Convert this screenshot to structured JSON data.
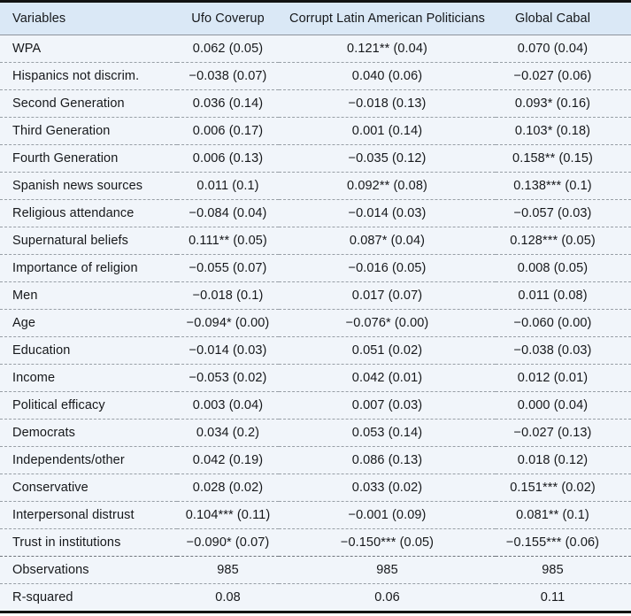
{
  "table": {
    "columns": [
      "Variables",
      "Ufo Coverup",
      "Corrupt Latin American Politicians",
      "Global Cabal"
    ],
    "rows": [
      {
        "label": "WPA",
        "values": [
          "0.062 (0.05)",
          "0.121** (0.04)",
          "0.070 (0.04)"
        ]
      },
      {
        "label": "Hispanics not discrim.",
        "values": [
          "−0.038 (0.07)",
          "0.040 (0.06)",
          "−0.027 (0.06)"
        ]
      },
      {
        "label": "Second Generation",
        "values": [
          "0.036 (0.14)",
          "−0.018 (0.13)",
          "0.093* (0.16)"
        ]
      },
      {
        "label": "Third Generation",
        "values": [
          "0.006 (0.17)",
          "0.001 (0.14)",
          "0.103* (0.18)"
        ]
      },
      {
        "label": "Fourth Generation",
        "values": [
          "0.006 (0.13)",
          "−0.035 (0.12)",
          "0.158** (0.15)"
        ]
      },
      {
        "label": "Spanish news sources",
        "values": [
          "0.011 (0.1)",
          "0.092** (0.08)",
          "0.138*** (0.1)"
        ]
      },
      {
        "label": "Religious attendance",
        "values": [
          "−0.084 (0.04)",
          "−0.014 (0.03)",
          "−0.057 (0.03)"
        ]
      },
      {
        "label": "Supernatural beliefs",
        "values": [
          "0.111** (0.05)",
          "0.087* (0.04)",
          "0.128*** (0.05)"
        ]
      },
      {
        "label": "Importance of religion",
        "values": [
          "−0.055 (0.07)",
          "−0.016 (0.05)",
          "0.008 (0.05)"
        ]
      },
      {
        "label": "Men",
        "values": [
          "−0.018 (0.1)",
          "0.017 (0.07)",
          "0.011 (0.08)"
        ]
      },
      {
        "label": "Age",
        "values": [
          "−0.094* (0.00)",
          "−0.076* (0.00)",
          "−0.060 (0.00)"
        ]
      },
      {
        "label": "Education",
        "values": [
          "−0.014 (0.03)",
          "0.051 (0.02)",
          "−0.038 (0.03)"
        ]
      },
      {
        "label": "Income",
        "values": [
          "−0.053 (0.02)",
          "0.042 (0.01)",
          "0.012 (0.01)"
        ]
      },
      {
        "label": "Political efficacy",
        "values": [
          "0.003 (0.04)",
          "0.007 (0.03)",
          "0.000 (0.04)"
        ]
      },
      {
        "label": "Democrats",
        "values": [
          "0.034 (0.2)",
          "0.053 (0.14)",
          "−0.027 (0.13)"
        ]
      },
      {
        "label": "Independents/other",
        "values": [
          "0.042 (0.19)",
          "0.086 (0.13)",
          "0.018 (0.12)"
        ]
      },
      {
        "label": "Conservative",
        "values": [
          "0.028 (0.02)",
          "0.033 (0.02)",
          "0.151*** (0.02)"
        ]
      },
      {
        "label": "Interpersonal distrust",
        "values": [
          "0.104*** (0.11)",
          "−0.001 (0.09)",
          "0.081** (0.1)"
        ]
      },
      {
        "label": "Trust in institutions",
        "values": [
          "−0.090* (0.07)",
          "−0.150*** (0.05)",
          "−0.155*** (0.06)"
        ]
      },
      {
        "label": "Observations",
        "values": [
          "985",
          "985",
          "985"
        ]
      },
      {
        "label": "R-squared",
        "values": [
          "0.08",
          "0.06",
          "0.11"
        ]
      }
    ],
    "summary_rows_start_index": 19
  },
  "colors": {
    "header_bg": "#dae8f6",
    "body_bg": "#f1f5fa",
    "rule": "#121212",
    "row_divider": "#989fa6"
  }
}
